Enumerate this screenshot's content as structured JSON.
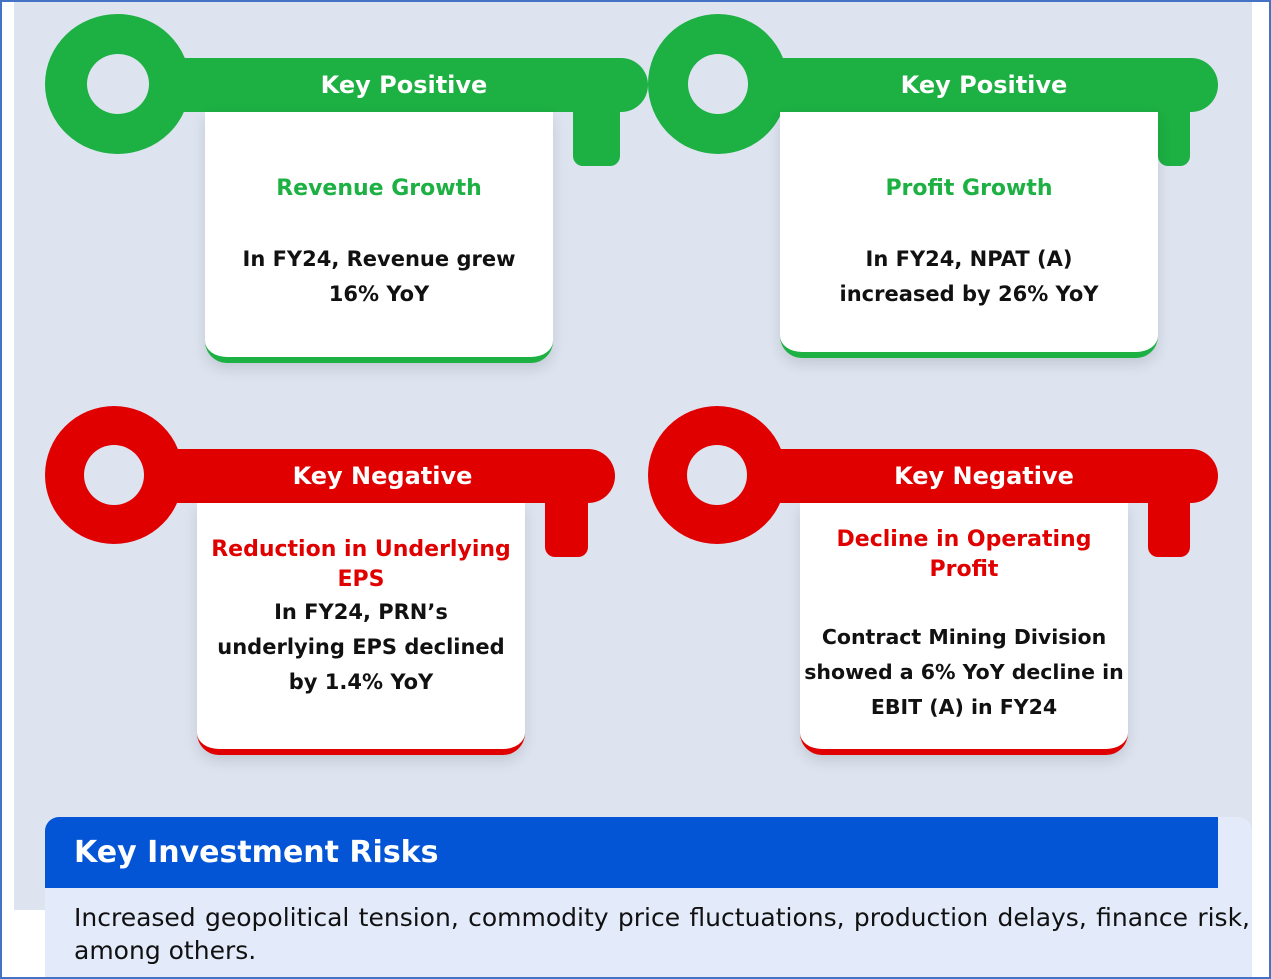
{
  "cards": [
    {
      "badge": "Key Positive",
      "title": "Revenue Growth",
      "body": "In FY24, Revenue grew 16% YoY",
      "color": "#1db043"
    },
    {
      "badge": "Key Positive",
      "title": "Profit Growth",
      "body": "In FY24, NPAT (A) increased by 26% YoY",
      "color": "#1db043"
    },
    {
      "badge": "Key Negative",
      "title": "Reduction in Underlying EPS",
      "body": "In FY24, PRN’s underlying EPS declined by 1.4% YoY",
      "color": "#e00000"
    },
    {
      "badge": "Key Negative",
      "title": "Decline in Operating Profit",
      "body": "Contract Mining Division showed a 6% YoY decline in EBIT (A) in FY24",
      "color": "#e00000"
    }
  ],
  "risks": {
    "title": "Key Investment Risks",
    "body": "Increased geopolitical tension, commodity price fluctuations, production delays, finance risk, among others."
  }
}
